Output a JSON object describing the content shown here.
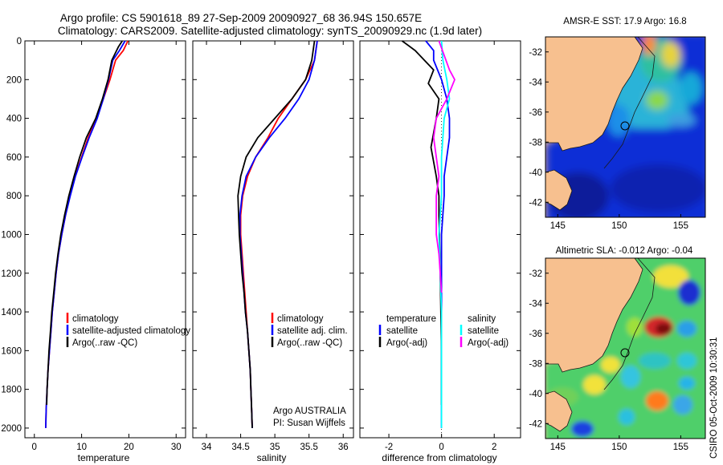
{
  "header": {
    "title_line1": "Argo profile: CS 5901618_89 27-Sep-2009 20090927_68 36.94S 150.657E",
    "title_line2": "Climatology: CARS2009. Satellite-adjusted climatology: synTS_20090929.nc (1.9d later)"
  },
  "side_label": "CSIRO 05-Oct-2009 10:30:31",
  "colors": {
    "climatology": "#ff0000",
    "satellite": "#0000ff",
    "argo": "#000000",
    "salinity_satellite": "#00ffff",
    "salinity_argo": "#ff00ff",
    "land": "#f7c08f",
    "sea_deep": "#0a1f9e"
  },
  "chart_data": [
    {
      "id": "temperature",
      "type": "line",
      "xlabel": "temperature",
      "ylabel": "",
      "xlim": [
        -2,
        32
      ],
      "ylim": [
        2050,
        0
      ],
      "xticks": [
        "0",
        "10",
        "20",
        "30"
      ],
      "yticks": [
        "0",
        "200",
        "400",
        "600",
        "800",
        "1000",
        "1200",
        "1400",
        "1600",
        "1800",
        "2000"
      ],
      "legend": [
        "climatology",
        "satellite-adjusted climatology",
        "Argo(..raw -QC)"
      ],
      "legend_position": "lower-middle",
      "series": [
        {
          "name": "climatology",
          "color": "#ff0000",
          "points": [
            [
              19.8,
              0
            ],
            [
              18.8,
              50
            ],
            [
              17.2,
              100
            ],
            [
              16.0,
              200
            ],
            [
              14.6,
              300
            ],
            [
              13.2,
              400
            ],
            [
              11.4,
              500
            ],
            [
              10.0,
              600
            ],
            [
              8.6,
              700
            ],
            [
              7.5,
              800
            ],
            [
              6.6,
              900
            ],
            [
              5.8,
              1000
            ],
            [
              5.1,
              1100
            ],
            [
              4.6,
              1200
            ],
            [
              4.2,
              1300
            ],
            [
              3.8,
              1400
            ],
            [
              3.5,
              1500
            ],
            [
              3.2,
              1600
            ],
            [
              2.9,
              1700
            ],
            [
              2.7,
              1800
            ],
            [
              2.5,
              1900
            ],
            [
              2.4,
              2000
            ]
          ]
        },
        {
          "name": "satellite-adjusted climatology",
          "color": "#0000ff",
          "points": [
            [
              19.2,
              0
            ],
            [
              18.0,
              50
            ],
            [
              16.6,
              100
            ],
            [
              15.7,
              200
            ],
            [
              14.6,
              300
            ],
            [
              13.3,
              400
            ],
            [
              11.6,
              500
            ],
            [
              10.1,
              600
            ],
            [
              8.7,
              700
            ],
            [
              7.6,
              800
            ],
            [
              6.6,
              900
            ],
            [
              5.8,
              1000
            ],
            [
              5.1,
              1100
            ],
            [
              4.6,
              1200
            ],
            [
              4.2,
              1300
            ],
            [
              3.8,
              1400
            ],
            [
              3.5,
              1500
            ],
            [
              3.2,
              1600
            ],
            [
              2.9,
              1700
            ],
            [
              2.7,
              1800
            ],
            [
              2.5,
              1900
            ],
            [
              2.4,
              2000
            ]
          ]
        },
        {
          "name": "Argo(..raw -QC)",
          "color": "#000000",
          "points": [
            [
              18.6,
              0
            ],
            [
              17.8,
              30
            ],
            [
              16.4,
              100
            ],
            [
              15.6,
              200
            ],
            [
              14.4,
              300
            ],
            [
              13.0,
              400
            ],
            [
              11.0,
              500
            ],
            [
              9.6,
              600
            ],
            [
              8.4,
              700
            ],
            [
              7.3,
              800
            ],
            [
              6.4,
              900
            ],
            [
              5.6,
              1000
            ],
            [
              5.0,
              1100
            ],
            [
              4.5,
              1200
            ],
            [
              4.1,
              1300
            ],
            [
              3.7,
              1400
            ],
            [
              3.4,
              1500
            ],
            [
              3.1,
              1600
            ],
            [
              2.9,
              1700
            ],
            [
              2.7,
              1800
            ],
            [
              2.6,
              1880
            ]
          ]
        }
      ]
    },
    {
      "id": "salinity",
      "type": "line",
      "xlabel": "salinity",
      "ylabel": "",
      "xlim": [
        33.8,
        36.15
      ],
      "ylim": [
        2050,
        0
      ],
      "xticks": [
        "34",
        "34.5",
        "35",
        "35.5",
        "36"
      ],
      "legend": [
        "climatology",
        "satellite adj. clim.",
        "Argo(..raw -QC)"
      ],
      "legend_position": "lower-middle",
      "annotation": [
        "Argo AUSTRALIA",
        "PI: Susan Wijffels"
      ],
      "series": [
        {
          "name": "climatology",
          "color": "#ff0000",
          "points": [
            [
              35.62,
              0
            ],
            [
              35.58,
              100
            ],
            [
              35.45,
              200
            ],
            [
              35.25,
              300
            ],
            [
              35.05,
              400
            ],
            [
              34.9,
              500
            ],
            [
              34.72,
              600
            ],
            [
              34.6,
              700
            ],
            [
              34.53,
              800
            ],
            [
              34.5,
              900
            ],
            [
              34.5,
              1000
            ],
            [
              34.52,
              1100
            ],
            [
              34.54,
              1200
            ],
            [
              34.56,
              1300
            ],
            [
              34.58,
              1400
            ],
            [
              34.6,
              1500
            ],
            [
              34.62,
              1600
            ],
            [
              34.64,
              1700
            ],
            [
              34.65,
              1800
            ],
            [
              34.66,
              1900
            ],
            [
              34.67,
              2000
            ]
          ]
        },
        {
          "name": "satellite adj. clim.",
          "color": "#0000ff",
          "points": [
            [
              35.62,
              0
            ],
            [
              35.58,
              100
            ],
            [
              35.5,
              200
            ],
            [
              35.35,
              300
            ],
            [
              35.15,
              400
            ],
            [
              34.92,
              500
            ],
            [
              34.72,
              600
            ],
            [
              34.58,
              700
            ],
            [
              34.52,
              800
            ],
            [
              34.49,
              900
            ],
            [
              34.49,
              1000
            ],
            [
              34.51,
              1100
            ],
            [
              34.53,
              1200
            ],
            [
              34.55,
              1300
            ],
            [
              34.57,
              1400
            ],
            [
              34.6,
              1500
            ],
            [
              34.62,
              1600
            ],
            [
              34.64,
              1700
            ],
            [
              34.65,
              1800
            ],
            [
              34.66,
              1900
            ],
            [
              34.67,
              2000
            ]
          ]
        },
        {
          "name": "Argo(..raw -QC)",
          "color": "#000000",
          "points": [
            [
              35.58,
              0
            ],
            [
              35.54,
              100
            ],
            [
              35.45,
              200
            ],
            [
              35.25,
              300
            ],
            [
              35.0,
              400
            ],
            [
              34.75,
              500
            ],
            [
              34.58,
              600
            ],
            [
              34.5,
              700
            ],
            [
              34.46,
              800
            ],
            [
              34.47,
              900
            ],
            [
              34.48,
              1000
            ],
            [
              34.5,
              1100
            ],
            [
              34.52,
              1200
            ],
            [
              34.55,
              1300
            ],
            [
              34.57,
              1400
            ],
            [
              34.6,
              1500
            ],
            [
              34.62,
              1600
            ],
            [
              34.64,
              1700
            ],
            [
              34.65,
              1800
            ],
            [
              34.66,
              1900
            ],
            [
              34.67,
              2000
            ]
          ]
        }
      ]
    },
    {
      "id": "difference",
      "type": "line",
      "xlabel": "difference from climatology",
      "ylabel": "",
      "xlim": [
        -3.1,
        3.0
      ],
      "ylim": [
        2050,
        0
      ],
      "xticks": [
        "-2",
        "0",
        "2"
      ],
      "legend_left_title": "temperature",
      "legend_right_title": "salinity",
      "legend_left": [
        "satellite",
        "Argo(-adj)"
      ],
      "legend_right": [
        "satellite",
        "Argo(-adj)"
      ],
      "legend_position": "lower-middle",
      "series": [
        {
          "name": "temperature satellite",
          "color": "#0000ff",
          "points": [
            [
              -0.6,
              0
            ],
            [
              -0.3,
              50
            ],
            [
              -0.3,
              100
            ],
            [
              0.0,
              200
            ],
            [
              0.2,
              300
            ],
            [
              0.3,
              400
            ],
            [
              0.3,
              500
            ],
            [
              0.2,
              600
            ],
            [
              0.1,
              700
            ],
            [
              0.1,
              800
            ],
            [
              0.0,
              1000
            ],
            [
              0.0,
              1400
            ],
            [
              0.0,
              2000
            ]
          ]
        },
        {
          "name": "temperature Argo(-adj)",
          "color": "#000000",
          "points": [
            [
              -1.5,
              0
            ],
            [
              -1.0,
              50
            ],
            [
              -0.3,
              150
            ],
            [
              -0.5,
              220
            ],
            [
              -0.1,
              300
            ],
            [
              -0.2,
              400
            ],
            [
              -0.4,
              550
            ],
            [
              -0.2,
              700
            ],
            [
              -0.1,
              800
            ],
            [
              -0.1,
              900
            ],
            [
              -0.05,
              1200
            ],
            [
              0.0,
              1600
            ],
            [
              0.0,
              1880
            ]
          ]
        },
        {
          "name": "salinity satellite",
          "color": "#00ffff",
          "points": [
            [
              0.0,
              0
            ],
            [
              0.05,
              100
            ],
            [
              0.2,
              200
            ],
            [
              0.3,
              300
            ],
            [
              0.1,
              400
            ],
            [
              0.05,
              500
            ],
            [
              0.0,
              600
            ],
            [
              0.0,
              800
            ],
            [
              -0.1,
              1000
            ],
            [
              0.0,
              1400
            ],
            [
              0.0,
              2000
            ]
          ]
        },
        {
          "name": "salinity Argo(-adj)",
          "color": "#ff00ff",
          "points": [
            [
              -0.1,
              0
            ],
            [
              0.3,
              150
            ],
            [
              0.5,
              200
            ],
            [
              0.2,
              300
            ],
            [
              -0.2,
              400
            ],
            [
              -0.3,
              500
            ],
            [
              -0.2,
              600
            ],
            [
              -0.1,
              700
            ],
            [
              -0.2,
              800
            ],
            [
              -0.2,
              1000
            ],
            [
              -0.1,
              1100
            ],
            [
              0.0,
              1300
            ]
          ]
        }
      ]
    },
    {
      "id": "sst_map",
      "type": "heatmap",
      "title": "AMSR-E SST: 17.9 Argo: 16.8",
      "xlim": [
        144,
        157
      ],
      "ylim": [
        -43,
        -31
      ],
      "xticks": [
        "145",
        "150",
        "155"
      ],
      "yticks": [
        "-32",
        "-34",
        "-36",
        "-38",
        "-40",
        "-42"
      ],
      "float_position": [
        150.657,
        -36.94
      ]
    },
    {
      "id": "sla_map",
      "type": "heatmap",
      "title": "Altimetric SLA: -0.012 Argo: -0.04",
      "xlim": [
        144,
        157
      ],
      "ylim": [
        -43,
        -31
      ],
      "xticks": [
        "145",
        "150",
        "155"
      ],
      "yticks": [
        "-32",
        "-34",
        "-36",
        "-38",
        "-40",
        "-42"
      ],
      "float_position": [
        150.657,
        -36.94
      ]
    }
  ]
}
